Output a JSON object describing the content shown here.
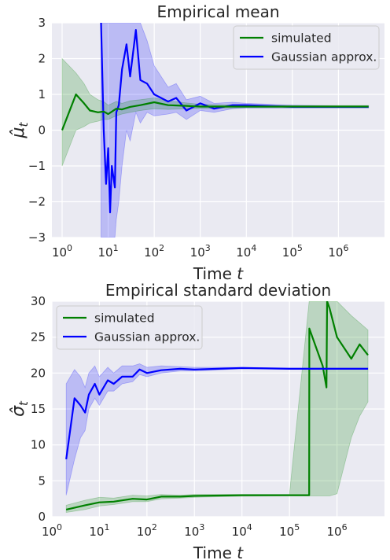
{
  "chart_data": [
    {
      "type": "line",
      "title": "Empirical mean",
      "xlabel": "Time t",
      "ylabel": "μ̂_t",
      "xscale": "log",
      "xlim": [
        0.6,
        10000000
      ],
      "ylim": [
        -3,
        3
      ],
      "xticks": [
        1,
        10,
        100,
        1000,
        10000,
        100000,
        1000000
      ],
      "yticks": [
        -3,
        -2,
        -1,
        0,
        1,
        2,
        3
      ],
      "grid": true,
      "legend_position": "top-right",
      "series": [
        {
          "name": "simulated",
          "color": "#008000",
          "x": [
            1,
            2,
            3,
            4,
            6,
            8,
            10,
            15,
            20,
            30,
            50,
            100,
            200,
            500,
            1000,
            5000,
            10000,
            100000,
            1000000,
            4500000
          ],
          "y": [
            0.0,
            1.0,
            0.75,
            0.55,
            0.5,
            0.52,
            0.45,
            0.6,
            0.58,
            0.65,
            0.7,
            0.78,
            0.7,
            0.68,
            0.66,
            0.66,
            0.66,
            0.66,
            0.66,
            0.66
          ],
          "band_lower": [
            -1.0,
            0.0,
            0.1,
            0.2,
            0.25,
            0.3,
            0.3,
            0.4,
            0.45,
            0.5,
            0.55,
            0.6,
            0.58,
            0.6,
            0.61,
            0.62,
            0.63,
            0.63,
            0.63,
            0.63
          ],
          "band_upper": [
            2.0,
            1.6,
            1.3,
            1.0,
            0.85,
            0.8,
            0.7,
            0.8,
            0.75,
            0.82,
            0.85,
            0.9,
            0.82,
            0.76,
            0.72,
            0.7,
            0.69,
            0.69,
            0.69,
            0.69
          ]
        },
        {
          "name": "Gaussian approx.",
          "color": "#0000ff",
          "x": [
            7,
            8,
            9,
            10,
            11,
            12,
            14,
            15,
            17,
            20,
            25,
            30,
            40,
            50,
            70,
            100,
            200,
            300,
            500,
            1000,
            2000,
            5000,
            10000,
            100000,
            1000000,
            4500000
          ],
          "y": [
            3.0,
            0.0,
            -1.5,
            -0.5,
            -2.3,
            -1.0,
            -1.6,
            0.5,
            0.7,
            1.7,
            2.4,
            1.5,
            2.8,
            1.4,
            1.3,
            1.0,
            0.8,
            0.9,
            0.55,
            0.75,
            0.6,
            0.7,
            0.7,
            0.65,
            0.65,
            0.65
          ],
          "band_lower": [
            -3.0,
            -3.0,
            -3.0,
            -3.0,
            -3.0,
            -3.0,
            -3.0,
            -2.5,
            -2.0,
            -1.0,
            0.0,
            -0.3,
            0.5,
            0.2,
            0.5,
            0.4,
            0.45,
            0.5,
            0.3,
            0.55,
            0.5,
            0.6,
            0.62,
            0.62,
            0.62,
            0.62
          ],
          "band_upper": [
            3.0,
            3.0,
            3.0,
            3.0,
            3.0,
            3.0,
            3.0,
            3.0,
            3.0,
            3.0,
            3.0,
            3.0,
            3.0,
            3.0,
            2.5,
            1.8,
            1.2,
            1.3,
            0.85,
            0.95,
            0.75,
            0.78,
            0.75,
            0.7,
            0.68,
            0.68
          ]
        }
      ]
    },
    {
      "type": "line",
      "title": "Empirical standard deviation",
      "xlabel": "Time t",
      "ylabel": "σ̂_t",
      "xscale": "log",
      "xlim": [
        1,
        10000000
      ],
      "ylim": [
        0,
        30
      ],
      "xticks": [
        1,
        10,
        100,
        1000,
        10000,
        100000,
        1000000
      ],
      "yticks": [
        0,
        5,
        10,
        15,
        20,
        25,
        30
      ],
      "grid": true,
      "legend_position": "top-left",
      "series": [
        {
          "name": "simulated",
          "color": "#008000",
          "x": [
            2,
            5,
            10,
            20,
            50,
            100,
            200,
            500,
            1000,
            10000,
            100000,
            260000,
            262000,
            500000,
            600000,
            620000,
            700000,
            1000000,
            2000000,
            3000000,
            4500000
          ],
          "y": [
            1.0,
            1.6,
            2.0,
            2.1,
            2.5,
            2.4,
            2.8,
            2.8,
            2.9,
            3.0,
            3.0,
            3.0,
            26.2,
            21.0,
            18.0,
            30.0,
            29.0,
            25.0,
            22.0,
            24.0,
            22.5
          ],
          "band_lower": [
            0.6,
            1.0,
            1.5,
            1.7,
            2.1,
            2.1,
            2.5,
            2.6,
            2.7,
            2.85,
            2.9,
            2.9,
            2.9,
            2.9,
            2.9,
            2.9,
            2.9,
            3.2,
            11.0,
            14.0,
            16.0
          ],
          "band_upper": [
            1.6,
            2.3,
            2.7,
            2.6,
            3.0,
            2.9,
            3.1,
            3.0,
            3.1,
            3.1,
            3.1,
            30.0,
            30.0,
            30.0,
            30.0,
            30.0,
            30.0,
            30.0,
            28.0,
            27.0,
            26.0
          ]
        },
        {
          "name": "Gaussian approx.",
          "color": "#0000ff",
          "x": [
            2,
            3,
            4,
            5,
            6,
            8,
            10,
            15,
            20,
            30,
            50,
            70,
            100,
            200,
            500,
            1000,
            10000,
            100000,
            1000000,
            4500000
          ],
          "y": [
            8.0,
            16.5,
            15.5,
            14.5,
            17.0,
            18.5,
            17.0,
            19.0,
            18.5,
            19.5,
            19.5,
            20.5,
            20.0,
            20.4,
            20.6,
            20.5,
            20.7,
            20.6,
            20.6,
            20.6
          ],
          "band_lower": [
            3.0,
            8.0,
            11.0,
            12.0,
            15.0,
            16.5,
            15.5,
            17.5,
            17.5,
            18.5,
            18.8,
            19.8,
            19.5,
            20.0,
            20.3,
            20.3,
            20.6,
            20.55,
            20.55,
            20.55
          ],
          "band_upper": [
            18.5,
            20.5,
            19.5,
            18.0,
            20.0,
            21.0,
            19.5,
            20.8,
            20.0,
            21.0,
            21.0,
            21.3,
            20.8,
            21.0,
            20.9,
            20.8,
            20.8,
            20.7,
            20.7,
            20.7
          ]
        }
      ]
    }
  ]
}
